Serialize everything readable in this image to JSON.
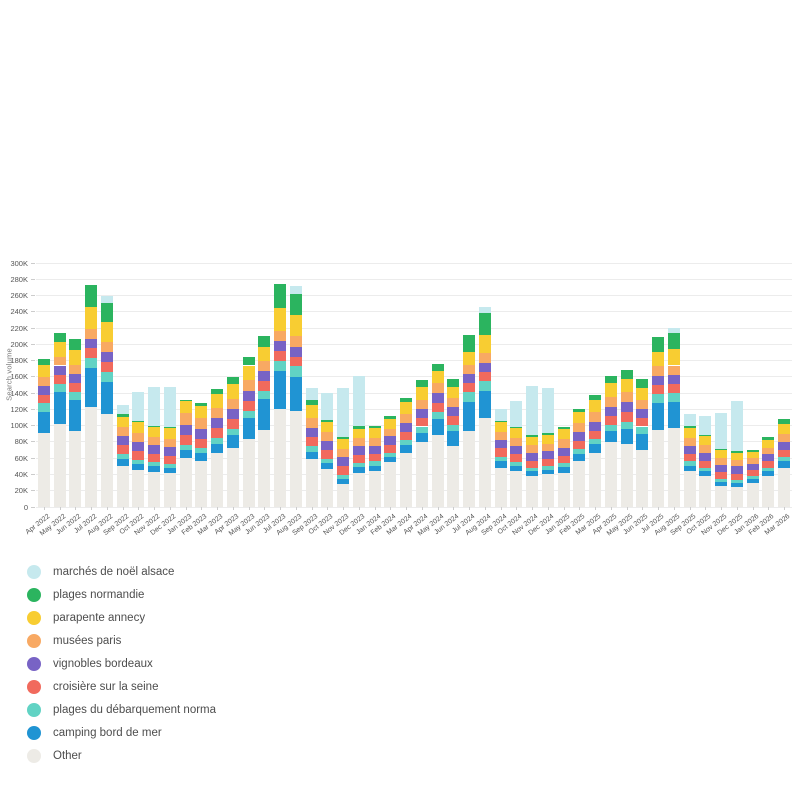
{
  "page": {
    "background": "#ffffff"
  },
  "chart_data": {
    "type": "bar",
    "stacked": true,
    "title": "",
    "xlabel": "",
    "ylabel": "Search volume",
    "unit": "K (all series values are thousands of searches)",
    "ylim": [
      0,
      300
    ],
    "ytick_step": 20,
    "ytick_labels": [
      "0",
      "20K",
      "40K",
      "60K",
      "80K",
      "100K",
      "120K",
      "140K",
      "160K",
      "180K",
      "200K",
      "220K",
      "240K",
      "260K",
      "280K",
      "300K"
    ],
    "grid": true,
    "legend_position": "bottom-left",
    "legend_order_top_to_bottom": [
      "marchés de noël alsace",
      "plages normandie",
      "parapente annecy",
      "musées paris",
      "vignobles bordeaux",
      "croisière sur la seine",
      "plages du débarquement norma",
      "camping bord de mer",
      "Other"
    ],
    "categories": [
      "Apr 2022",
      "May 2022",
      "Jun 2022",
      "Jul 2022",
      "Aug 2022",
      "Sep 2022",
      "Oct 2022",
      "Nov 2022",
      "Dec 2022",
      "Jan 2023",
      "Feb 2023",
      "Mar 2023",
      "Apr 2023",
      "May 2023",
      "Jun 2023",
      "Jul 2023",
      "Aug 2023",
      "Sep 2023",
      "Oct 2023",
      "Nov 2023",
      "Dec 2023",
      "Jan 2024",
      "Feb 2024",
      "Mar 2024",
      "Apr 2024",
      "May 2024",
      "Jun 2024",
      "Jul 2024",
      "Aug 2024",
      "Sep 2024",
      "Oct 2024",
      "Nov 2024",
      "Dec 2024",
      "Jan 2025",
      "Feb 2025",
      "Mar 2025",
      "Apr 2025",
      "May 2025",
      "Jun 2025",
      "Jul 2025",
      "Aug 2025",
      "Sep 2025",
      "Oct 2025",
      "Nov 2025",
      "Dec 2025",
      "Jan 2026",
      "Feb 2026",
      "Mar 2026"
    ],
    "series": [
      {
        "name": "Other",
        "color": "#edebe6",
        "values": [
          91,
          102,
          93,
          123,
          114,
          50,
          46,
          43,
          42,
          60,
          56,
          66,
          72,
          84,
          95,
          120,
          118,
          59,
          47,
          28,
          42,
          44,
          55,
          67,
          80,
          88,
          75,
          94,
          109,
          48,
          44,
          38,
          40,
          42,
          57,
          67,
          80,
          78,
          70,
          95,
          97,
          44,
          38,
          26,
          24,
          30,
          38,
          48
        ]
      },
      {
        "name": "camping bord de mer",
        "color": "#2094d3",
        "values": [
          26,
          39,
          39,
          48,
          40,
          9,
          7,
          7,
          6,
          10,
          10,
          12,
          16,
          25,
          38,
          47,
          42,
          9,
          7,
          6,
          7,
          7,
          7,
          9,
          11,
          20,
          18,
          35,
          34,
          8,
          6,
          6,
          6,
          7,
          8,
          10,
          13,
          18,
          20,
          33,
          32,
          7,
          6,
          5,
          5,
          5,
          6,
          8
        ]
      },
      {
        "name": "plages du débarquement norma",
        "color": "#61d3c4",
        "values": [
          11,
          10,
          10,
          12,
          12,
          6,
          5,
          5,
          5,
          6,
          6,
          7,
          8,
          9,
          10,
          13,
          13,
          7,
          5,
          5,
          5,
          5,
          5,
          6,
          8,
          9,
          8,
          12,
          12,
          6,
          5,
          4,
          4,
          5,
          6,
          7,
          8,
          9,
          9,
          11,
          11,
          5,
          4,
          4,
          4,
          3,
          4,
          5
        ]
      },
      {
        "name": "croisière sur la seine",
        "color": "#f16a5d",
        "values": [
          10,
          11,
          11,
          12,
          12,
          11,
          11,
          10,
          10,
          12,
          12,
          12,
          12,
          12,
          12,
          12,
          12,
          11,
          11,
          11,
          10,
          9,
          9,
          10,
          10,
          11,
          11,
          11,
          11,
          10,
          10,
          9,
          9,
          9,
          10,
          10,
          11,
          12,
          11,
          11,
          11,
          9,
          9,
          8,
          8,
          7,
          8,
          9
        ]
      },
      {
        "name": "vignobles bordeaux",
        "color": "#7863c5",
        "values": [
          11,
          12,
          11,
          12,
          12,
          11,
          11,
          11,
          11,
          13,
          12,
          12,
          12,
          13,
          12,
          12,
          12,
          11,
          11,
          11,
          11,
          10,
          11,
          11,
          11,
          12,
          11,
          11,
          11,
          10,
          10,
          10,
          10,
          10,
          11,
          11,
          11,
          12,
          11,
          11,
          11,
          10,
          10,
          9,
          9,
          8,
          9,
          10
        ]
      },
      {
        "name": "musées paris",
        "color": "#f8a963",
        "values": [
          11,
          11,
          11,
          12,
          13,
          11,
          11,
          10,
          10,
          14,
          13,
          13,
          13,
          13,
          12,
          13,
          13,
          12,
          11,
          10,
          10,
          10,
          9,
          11,
          11,
          12,
          11,
          12,
          12,
          10,
          10,
          9,
          9,
          11,
          11,
          12,
          12,
          12,
          11,
          12,
          12,
          10,
          9,
          8,
          8,
          7,
          8,
          10
        ]
      },
      {
        "name": "parapente annecy",
        "color": "#f8cd32",
        "values": [
          15,
          18,
          18,
          27,
          24,
          13,
          13,
          13,
          13,
          15,
          15,
          17,
          18,
          18,
          18,
          28,
          26,
          17,
          13,
          13,
          11,
          12,
          12,
          15,
          16,
          15,
          14,
          16,
          22,
          12,
          12,
          10,
          11,
          12,
          14,
          15,
          17,
          16,
          14,
          17,
          20,
          12,
          11,
          10,
          9,
          8,
          9,
          12
        ]
      },
      {
        "name": "plages normandie",
        "color": "#2bb45f",
        "values": [
          7,
          11,
          13,
          27,
          24,
          3,
          2,
          1,
          1,
          2,
          4,
          6,
          9,
          11,
          13,
          29,
          26,
          6,
          2,
          2,
          3,
          2,
          4,
          5,
          9,
          9,
          10,
          21,
          27,
          2,
          1,
          2,
          2,
          2,
          4,
          6,
          9,
          11,
          12,
          19,
          20,
          2,
          1,
          1,
          2,
          2,
          4,
          6
        ]
      },
      {
        "name": "marchés de noël alsace",
        "color": "#c6e9ee",
        "values": [
          0,
          0,
          0,
          0,
          9,
          11,
          36,
          47,
          49,
          0,
          0,
          0,
          0,
          0,
          0,
          0,
          10,
          14,
          33,
          60,
          62,
          0,
          0,
          0,
          0,
          0,
          0,
          0,
          8,
          14,
          32,
          61,
          55,
          0,
          0,
          0,
          0,
          0,
          0,
          0,
          6,
          15,
          24,
          44,
          61,
          0,
          0,
          0
        ]
      }
    ]
  }
}
